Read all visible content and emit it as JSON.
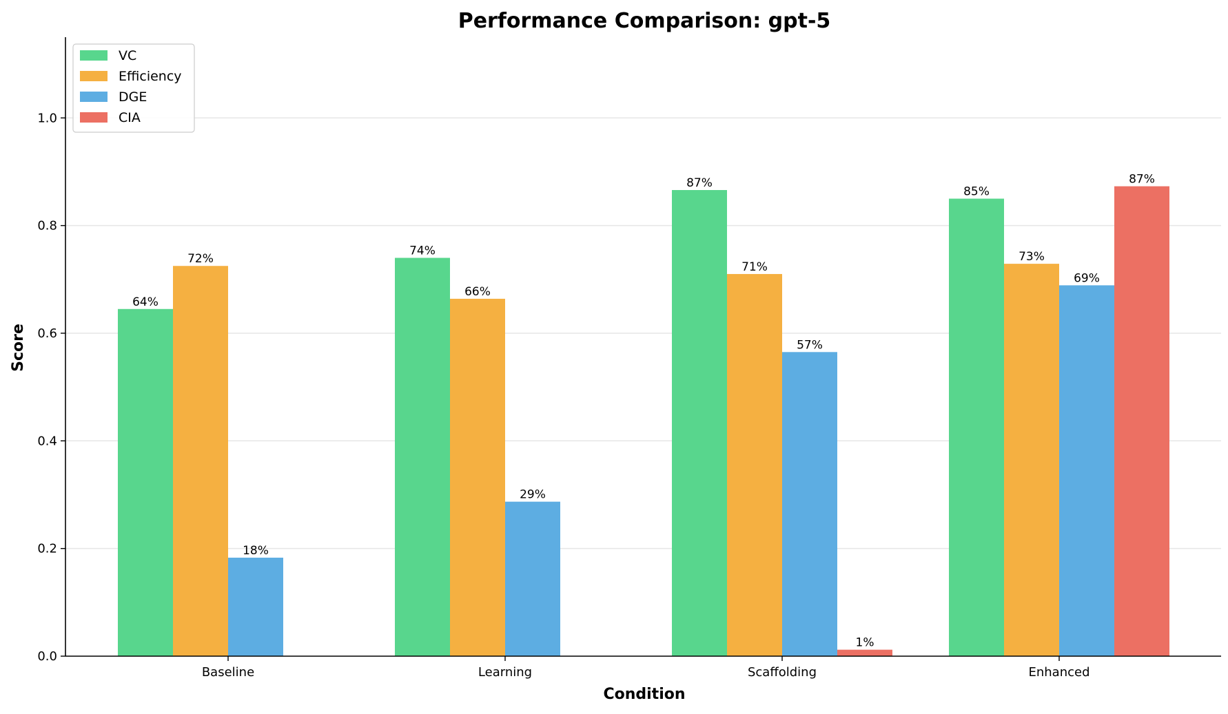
{
  "chart_data": {
    "type": "bar",
    "title": "Performance Comparison: gpt-5",
    "xlabel": "Condition",
    "ylabel": "Score",
    "categories": [
      "Baseline",
      "Learning",
      "Scaffolding",
      "Enhanced"
    ],
    "ylim": [
      0,
      1.15
    ],
    "yticks": [
      "0.0",
      "0.2",
      "0.4",
      "0.6",
      "0.8",
      "1.0"
    ],
    "grid": "horizontal",
    "legend_position": "top-left",
    "series": [
      {
        "name": "VC",
        "color": "#58d68d",
        "values": [
          0.645,
          0.74,
          0.866,
          0.85
        ],
        "labels": [
          "64%",
          "74%",
          "87%",
          "85%"
        ]
      },
      {
        "name": "Efficiency",
        "color": "#f5b041",
        "values": [
          0.725,
          0.664,
          0.71,
          0.729
        ],
        "labels": [
          "72%",
          "66%",
          "71%",
          "73%"
        ]
      },
      {
        "name": "DGE",
        "color": "#5dade2",
        "values": [
          0.183,
          0.287,
          0.565,
          0.689
        ],
        "labels": [
          "18%",
          "29%",
          "57%",
          "69%"
        ]
      },
      {
        "name": "CIA",
        "color": "#ec7063",
        "values": [
          null,
          null,
          0.012,
          0.873
        ],
        "labels": [
          null,
          null,
          "1%",
          "87%"
        ]
      }
    ]
  }
}
